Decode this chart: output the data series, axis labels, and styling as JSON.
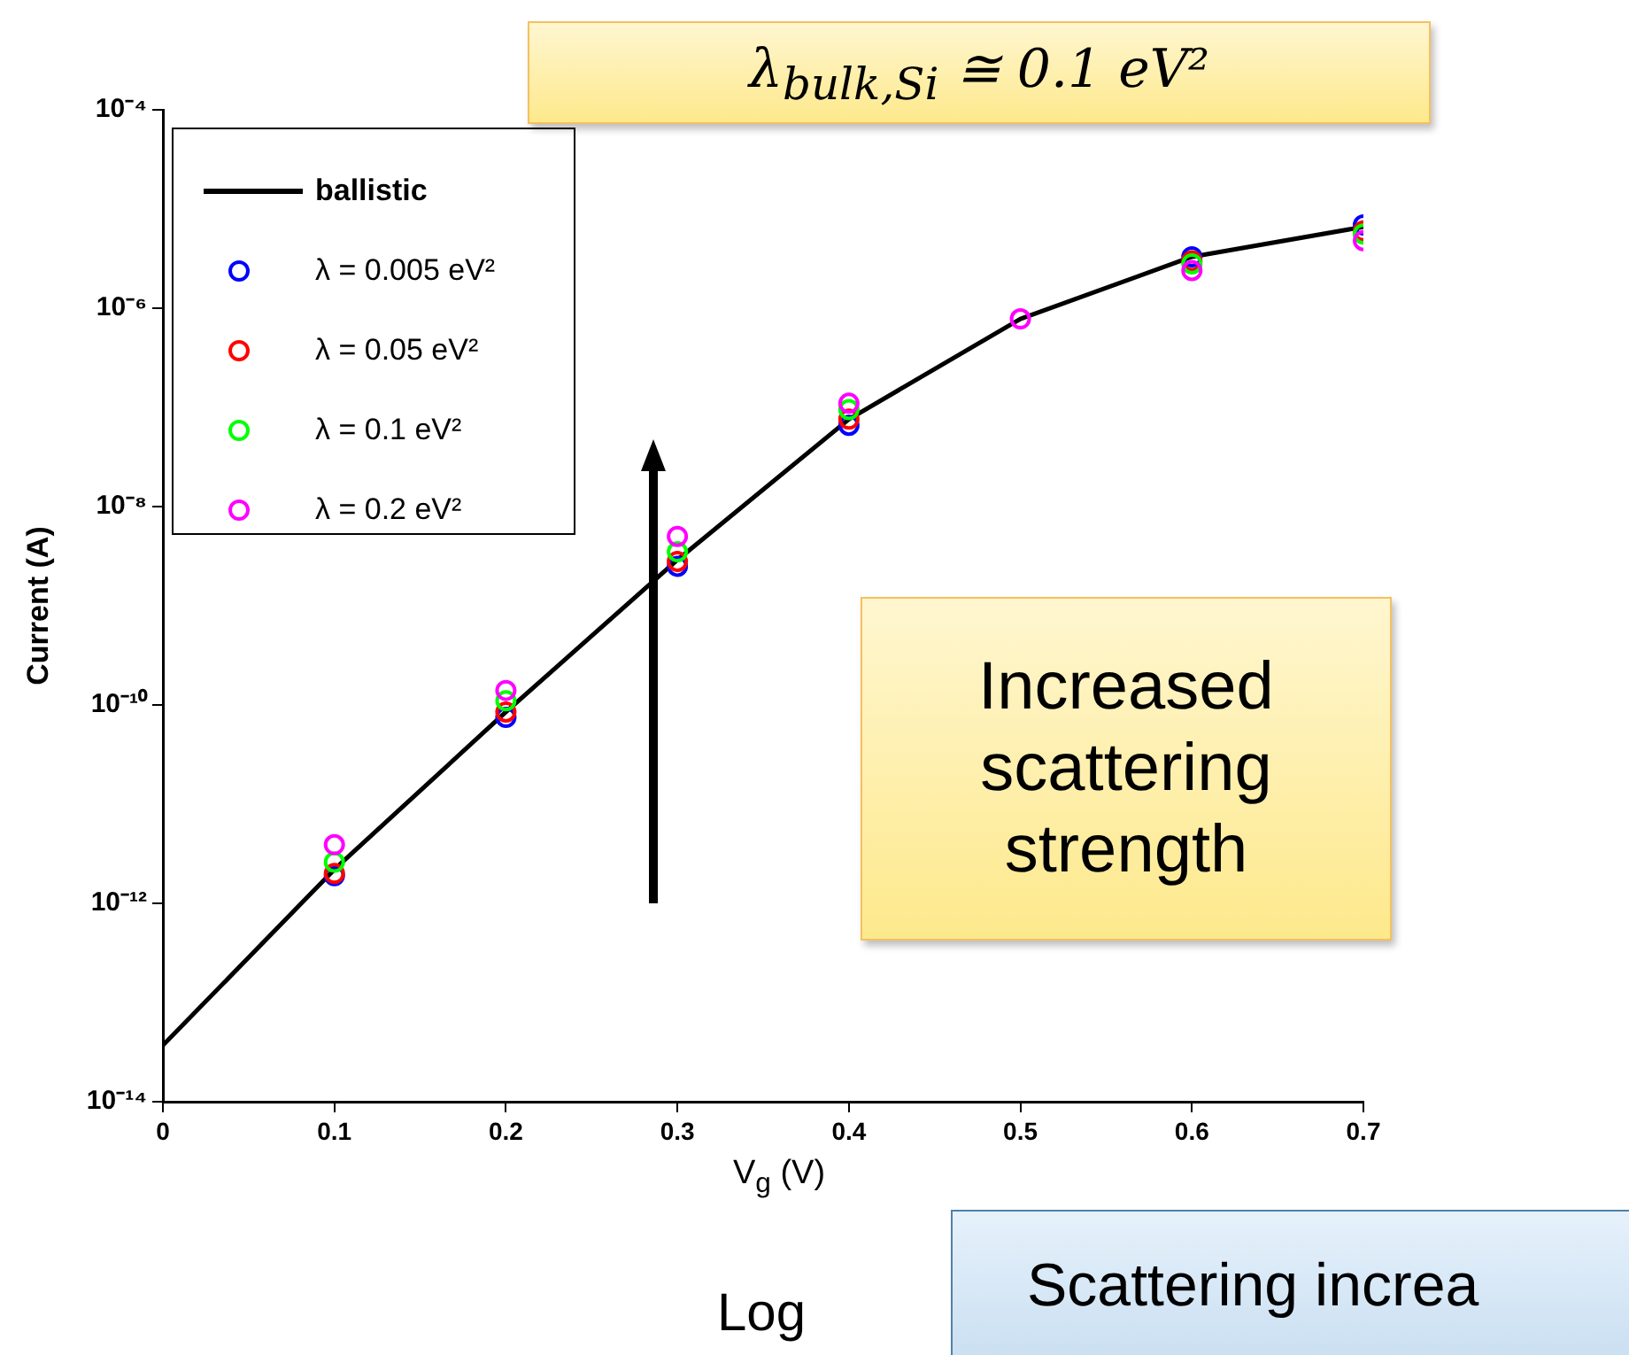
{
  "chart_data": {
    "type": "line",
    "ylabel": "Current (A)",
    "xlabel": "V$_{g}$ (V)",
    "series": [
      {
        "name": "ballistic",
        "color": "#000000",
        "marker": "none",
        "line_style": "solid",
        "x": [
          0,
          0.1,
          0.2,
          0.3,
          0.4,
          0.5,
          0.6,
          0.7
        ],
        "values": [
          3.7e-14,
          2.2e-12,
          8.5e-11,
          2.9e-09,
          7.6e-08,
          7.8e-07,
          3.3e-06,
          6.6e-06
        ]
      },
      {
        "name": "λ = 0.005 eV²",
        "type": "scatter",
        "color": "#0000ff",
        "marker": "circle",
        "x": [
          0.1,
          0.2,
          0.3,
          0.4,
          0.5,
          0.6,
          0.7
        ],
        "values": [
          1.9e-12,
          7.5e-11,
          2.5e-09,
          6.6e-08,
          null,
          3.3e-06,
          6.9e-06
        ]
      },
      {
        "name": "λ = 0.05 eV²",
        "type": "scatter",
        "color": "#ff0000",
        "marker": "circle",
        "x": [
          0.1,
          0.2,
          0.3,
          0.4,
          0.5,
          0.6,
          0.7
        ],
        "values": [
          2e-12,
          8.5e-11,
          2.8e-09,
          7.6e-08,
          null,
          3e-06,
          6e-06
        ]
      },
      {
        "name": "λ = 0.1 eV²",
        "type": "scatter",
        "color": "#00ff00",
        "marker": "circle",
        "x": [
          0.1,
          0.2,
          0.3,
          0.4,
          0.5,
          0.6,
          0.7
        ],
        "values": [
          2.6e-12,
          1.1e-10,
          3.5e-09,
          9.5e-08,
          null,
          2.8e-06,
          5.6e-06
        ]
      },
      {
        "name": "λ = 0.2 eV²",
        "type": "scatter",
        "color": "#ff00ff",
        "marker": "circle",
        "x": [
          0.1,
          0.2,
          0.3,
          0.4,
          0.5,
          0.6,
          0.7
        ],
        "values": [
          3.9e-12,
          1.4e-10,
          5e-09,
          1.1e-07,
          7.8e-07,
          2.4e-06,
          4.8e-06
        ]
      }
    ],
    "xlim": [
      0,
      0.7
    ],
    "xticks": [
      0,
      0.1,
      0.2,
      0.3,
      0.4,
      0.5,
      0.6,
      0.7
    ],
    "log": "y",
    "ylim": [
      1e-14,
      0.0001
    ],
    "yticks": [
      {
        "value": 1e-14,
        "label": "10⁻¹⁴"
      },
      {
        "value": 1e-12,
        "label": "10⁻¹²"
      },
      {
        "value": 1e-10,
        "label": "10⁻¹⁰"
      },
      {
        "value": 1e-08,
        "label": "10⁻⁸"
      },
      {
        "value": 1e-06,
        "label": "10⁻⁶"
      },
      {
        "value": 0.0001,
        "label": "10⁻⁴"
      }
    ],
    "grid": false,
    "legend": "top left",
    "annotations": [
      "λ$_{bulk,Si}$ ≅ 0.1 eV²",
      "Increased scattering strength",
      "Log",
      "Scattering increa"
    ]
  }
}
